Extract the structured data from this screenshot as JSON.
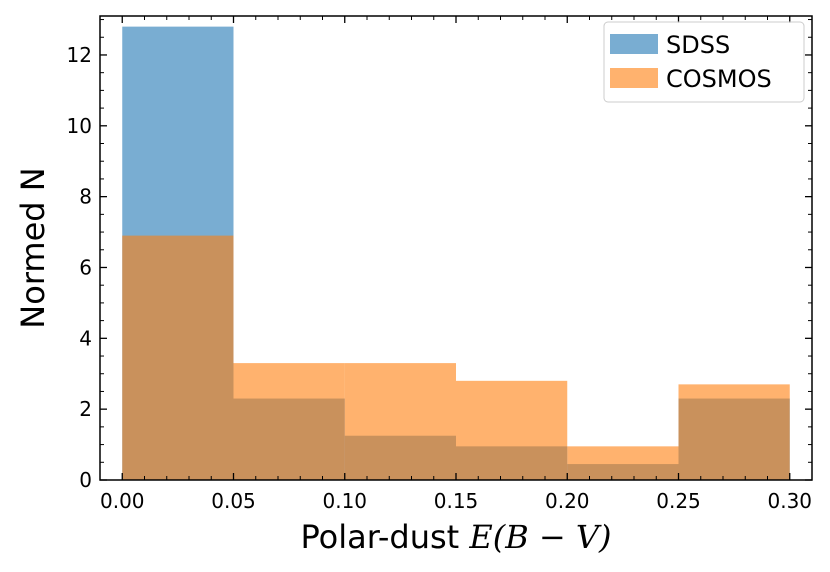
{
  "chart_data": {
    "type": "bar",
    "histogram": true,
    "bin_edges": [
      0.0,
      0.05,
      0.1,
      0.15,
      0.2,
      0.25,
      0.3
    ],
    "series": [
      {
        "name": "SDSS",
        "color": "#1f77b4",
        "values": [
          12.8,
          2.3,
          1.25,
          0.95,
          0.45,
          2.3
        ]
      },
      {
        "name": "COSMOS",
        "color": "#ff7f0e",
        "values": [
          6.9,
          3.3,
          3.3,
          2.8,
          0.95,
          2.7
        ]
      }
    ],
    "xlabel": "Polar-dust E(B − V)",
    "xlabel_parts": {
      "prefix": "Polar-dust ",
      "math": "E(B − V)"
    },
    "ylabel": "Normed N",
    "xlim": [
      -0.01,
      0.31
    ],
    "ylim": [
      0,
      13.1
    ],
    "xticks": [
      0.0,
      0.05,
      0.1,
      0.15,
      0.2,
      0.25,
      0.3
    ],
    "xtick_labels": [
      "0.00",
      "0.05",
      "0.10",
      "0.15",
      "0.20",
      "0.25",
      "0.30"
    ],
    "yticks": [
      0,
      2,
      4,
      6,
      8,
      10,
      12
    ],
    "ytick_labels": [
      "0",
      "2",
      "4",
      "6",
      "8",
      "10",
      "12"
    ],
    "legend_position": "top-right",
    "grid": false,
    "bar_alpha": 0.6
  }
}
